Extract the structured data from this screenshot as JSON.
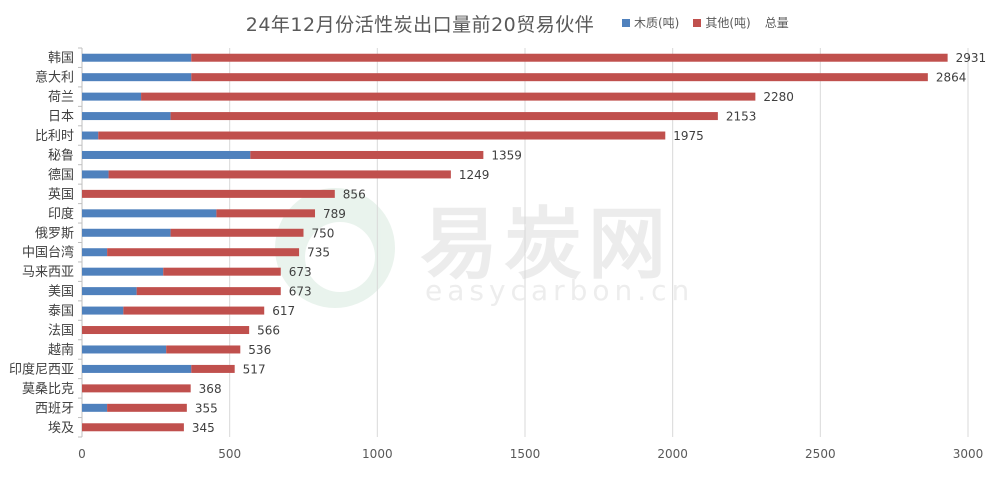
{
  "chart_data": {
    "type": "bar",
    "orientation": "horizontal",
    "stacked": true,
    "title": "24年12月份活性炭出口量前20贸易伙伴",
    "categories": [
      "韩国",
      "意大利",
      "荷兰",
      "日本",
      "比利时",
      "秘鲁",
      "德国",
      "英国",
      "印度",
      "俄罗斯",
      "中国台湾",
      "马来西亚",
      "美国",
      "泰国",
      "法国",
      "越南",
      "印度尼西亚",
      "莫桑比克",
      "西班牙",
      "埃及"
    ],
    "series": [
      {
        "name": "木质(吨)",
        "color": "#4f81bd",
        "values": [
          370,
          370,
          200,
          300,
          55,
          570,
          90,
          0,
          455,
          300,
          85,
          275,
          185,
          140,
          0,
          285,
          370,
          0,
          85,
          0
        ]
      },
      {
        "name": "其他(吨)",
        "color": "#c0504d",
        "values": [
          2561,
          2494,
          2080,
          1853,
          1920,
          789,
          1159,
          856,
          334,
          450,
          650,
          398,
          488,
          477,
          566,
          251,
          147,
          368,
          270,
          345
        ]
      }
    ],
    "totals_series_name": "总量",
    "totals": [
      2931,
      2864,
      2280,
      2153,
      1975,
      1359,
      1249,
      856,
      789,
      750,
      735,
      673,
      673,
      617,
      566,
      536,
      517,
      368,
      355,
      345
    ],
    "xlim": [
      0,
      3000
    ],
    "xticks": [
      0,
      500,
      1000,
      1500,
      2000,
      2500,
      3000
    ],
    "grid": true,
    "legend_position": "top-right"
  },
  "watermark": {
    "text": "易炭网",
    "subtext": "easycarbon.cn"
  }
}
